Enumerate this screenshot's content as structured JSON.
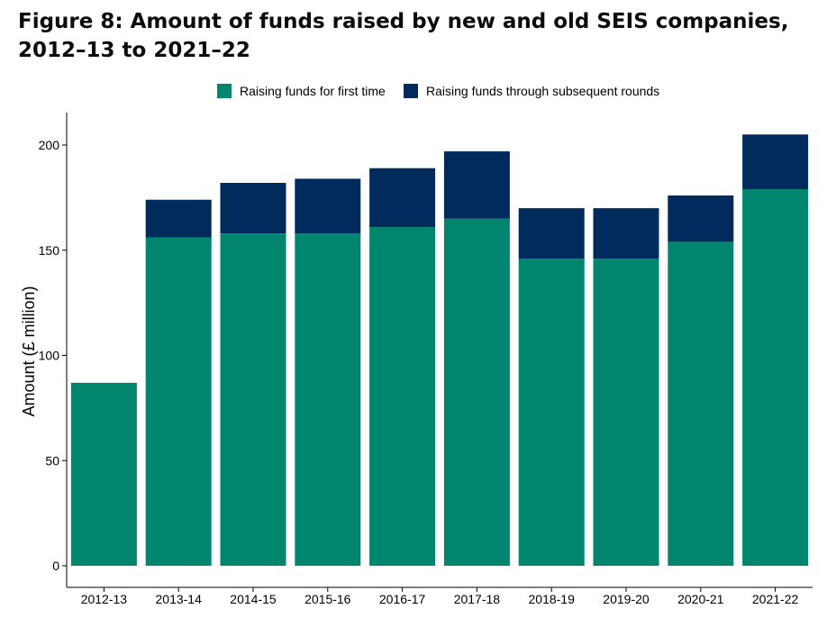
{
  "title": "Figure 8: Amount of funds raised by new and old SEIS companies, 2012–13 to 2021–22",
  "colors": {
    "first_time": "#00866f",
    "subsequent": "#012b5c",
    "axis": "#000000"
  },
  "chart_data": {
    "type": "bar",
    "stacked": true,
    "title": "Figure 8: Amount of funds raised by new and old SEIS companies, 2012–13 to 2021–22",
    "xlabel": "",
    "ylabel": "Amount (£ million)",
    "ylim": [
      0,
      212
    ],
    "yticks": [
      0,
      50,
      100,
      150,
      200
    ],
    "grid": false,
    "legend_position": "top",
    "categories": [
      "2012-13",
      "2013-14",
      "2014-15",
      "2015-16",
      "2016-17",
      "2017-18",
      "2018-19",
      "2019-20",
      "2020-21",
      "2021-22"
    ],
    "series": [
      {
        "name": "Raising funds for first time",
        "values": [
          87,
          156,
          158,
          158,
          161,
          165,
          146,
          146,
          154,
          179
        ]
      },
      {
        "name": "Raising funds through subsequent rounds",
        "values": [
          0,
          18,
          24,
          26,
          28,
          32,
          24,
          24,
          22,
          26
        ]
      }
    ]
  }
}
